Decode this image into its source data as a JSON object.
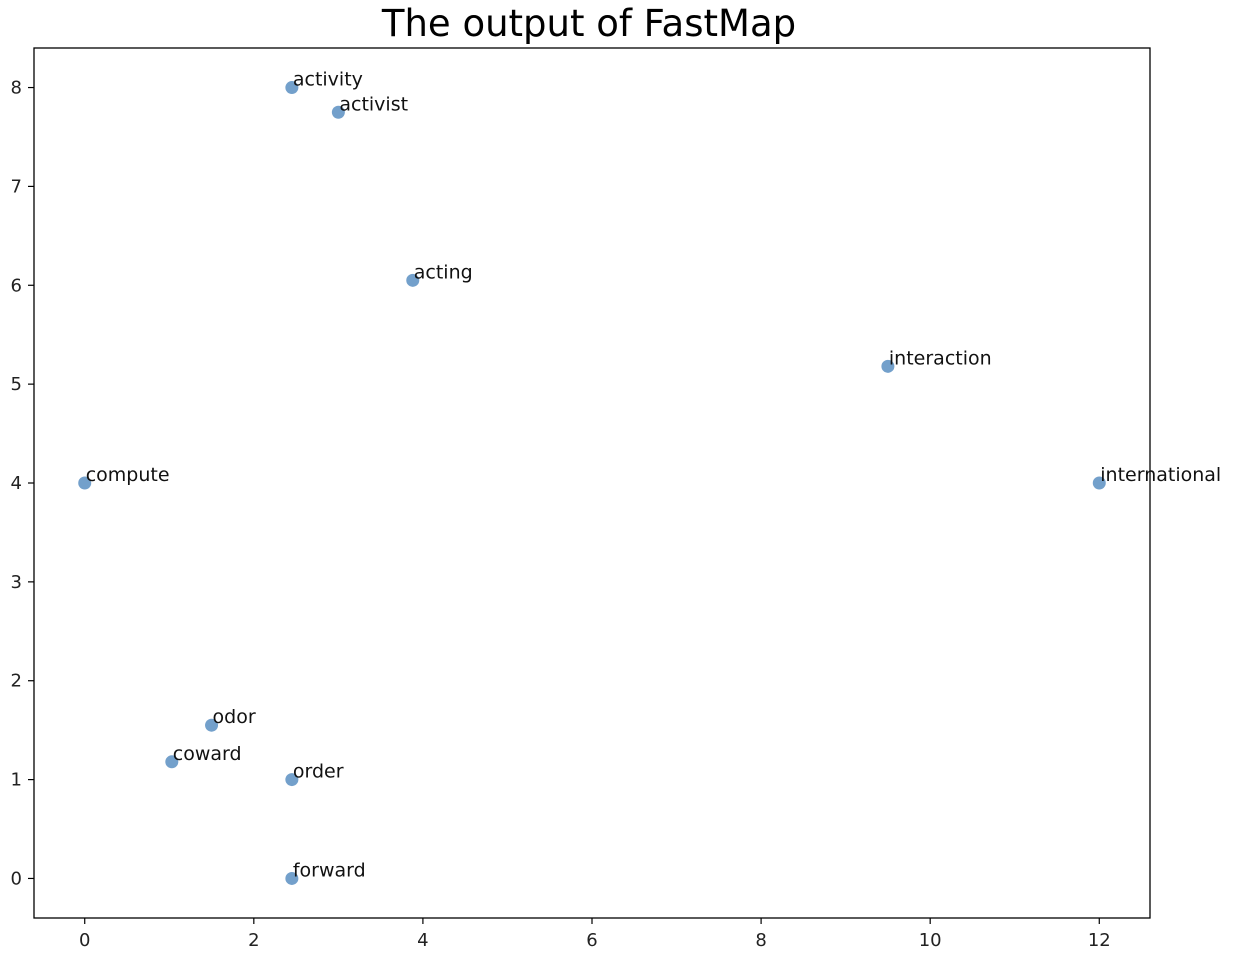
{
  "chart_data": {
    "type": "scatter",
    "title": "The output of FastMap",
    "xlabel": "",
    "ylabel": "",
    "xlim": [
      -0.6,
      12.6
    ],
    "ylim": [
      -0.4,
      8.4
    ],
    "xticks": [
      0,
      2,
      4,
      6,
      8,
      10,
      12
    ],
    "yticks": [
      0,
      1,
      2,
      3,
      4,
      5,
      6,
      7,
      8
    ],
    "grid": false,
    "marker_color": "#5b8fc2",
    "points": [
      {
        "label": "activity",
        "x": 2.45,
        "y": 8.0
      },
      {
        "label": "activist",
        "x": 3.0,
        "y": 7.75
      },
      {
        "label": "acting",
        "x": 3.88,
        "y": 6.05
      },
      {
        "label": "interaction",
        "x": 9.5,
        "y": 5.18
      },
      {
        "label": "compute",
        "x": 0.0,
        "y": 4.0
      },
      {
        "label": "international",
        "x": 12.0,
        "y": 4.0
      },
      {
        "label": "odor",
        "x": 1.5,
        "y": 1.55
      },
      {
        "label": "coward",
        "x": 1.03,
        "y": 1.18
      },
      {
        "label": "order",
        "x": 2.45,
        "y": 1.0
      },
      {
        "label": "forward",
        "x": 2.45,
        "y": 0.0
      }
    ]
  }
}
